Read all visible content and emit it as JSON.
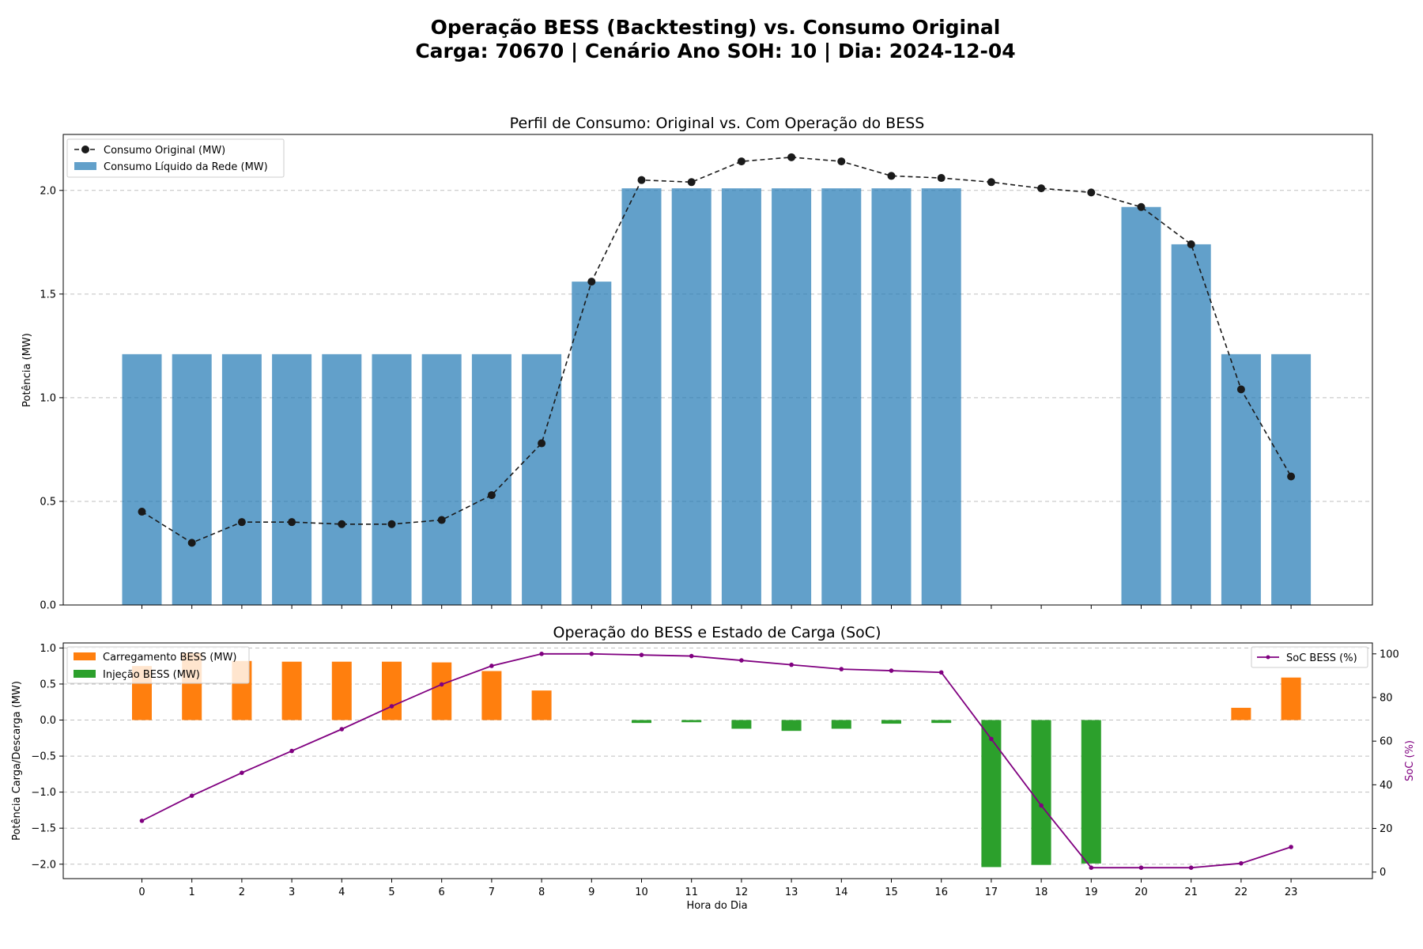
{
  "suptitle": {
    "line1": "Operação BESS (Backtesting) vs. Consumo Original",
    "line2": "Carga: 70670 | Cenário Ano SOH: 10 | Dia: 2024-12-04"
  },
  "colors": {
    "net": "#1f77b4",
    "original": "#1a1a1a",
    "charge": "#ff7f0e",
    "inject": "#2ca02c",
    "soc": "#800080"
  },
  "chart_data": [
    {
      "type": "bar",
      "title": "Perfil de Consumo: Original vs. Com Operação do BESS",
      "xlabel": "",
      "ylabel": "Potência (MW)",
      "ylim": [
        0,
        2.27
      ],
      "yticks": [
        "0.0",
        "0.5",
        "1.0",
        "1.5",
        "2.0"
      ],
      "grid": true,
      "legend": "top-left",
      "x": [
        0,
        1,
        2,
        3,
        4,
        5,
        6,
        7,
        8,
        9,
        10,
        11,
        12,
        13,
        14,
        15,
        16,
        17,
        18,
        19,
        20,
        21,
        22,
        23
      ],
      "series": [
        {
          "name": "Consumo Líquido da Rede (MW)",
          "kind": "bar",
          "values": [
            1.21,
            1.21,
            1.21,
            1.21,
            1.21,
            1.21,
            1.21,
            1.21,
            1.21,
            1.56,
            2.01,
            2.01,
            2.01,
            2.01,
            2.01,
            2.01,
            2.01,
            0,
            0,
            0,
            1.92,
            1.74,
            1.21,
            1.21
          ]
        },
        {
          "name": "Consumo Original (MW)",
          "kind": "line-dashed-markers",
          "values": [
            0.45,
            0.3,
            0.4,
            0.4,
            0.39,
            0.39,
            0.41,
            0.53,
            0.78,
            1.56,
            2.05,
            2.04,
            2.14,
            2.16,
            2.14,
            2.07,
            2.06,
            2.04,
            2.01,
            1.99,
            1.92,
            1.74,
            1.04,
            0.62
          ]
        }
      ]
    },
    {
      "type": "bar",
      "title": "Operação do BESS e Estado de Carga (SoC)",
      "xlabel": "Hora do Dia",
      "ylabel": "Potência Carga/Descarga (MW)",
      "ylabel_right": "SoC (%)",
      "ylim": [
        -2.2,
        1.07
      ],
      "ylim_right": [
        -3,
        105
      ],
      "yticks": [
        "−2.0",
        "−1.5",
        "−1.0",
        "−0.5",
        "0.0",
        "0.5",
        "1.0"
      ],
      "yticks_right": [
        "0",
        "20",
        "40",
        "60",
        "80",
        "100"
      ],
      "grid": true,
      "legend": "top-left",
      "legend_right": "top-right",
      "x": [
        0,
        1,
        2,
        3,
        4,
        5,
        6,
        7,
        8,
        9,
        10,
        11,
        12,
        13,
        14,
        15,
        16,
        17,
        18,
        19,
        20,
        21,
        22,
        23
      ],
      "series": [
        {
          "name": "Carregamento BESS (MW)",
          "kind": "bar",
          "values": [
            0.75,
            0.93,
            0.82,
            0.81,
            0.81,
            0.81,
            0.8,
            0.68,
            0.41,
            0,
            0,
            0,
            0,
            0,
            0,
            0,
            0,
            0,
            0,
            0,
            0,
            0,
            0.17,
            0.59
          ]
        },
        {
          "name": "Injeção BESS (MW)",
          "kind": "bar",
          "values": [
            0,
            0,
            0,
            0,
            0,
            0,
            0,
            0,
            0,
            0,
            -0.04,
            -0.03,
            -0.12,
            -0.15,
            -0.12,
            -0.05,
            -0.04,
            -2.04,
            -2.01,
            -1.99,
            0,
            0,
            0,
            0
          ]
        },
        {
          "name": "SoC BESS (%)",
          "kind": "line-markers-right",
          "values": [
            23.5,
            35,
            45.5,
            55.5,
            65.5,
            76,
            86,
            94.5,
            100,
            100,
            99.5,
            99,
            97,
            95,
            93,
            92.3,
            91.5,
            61,
            30.5,
            2,
            2,
            2,
            4,
            11.5
          ]
        }
      ]
    }
  ]
}
